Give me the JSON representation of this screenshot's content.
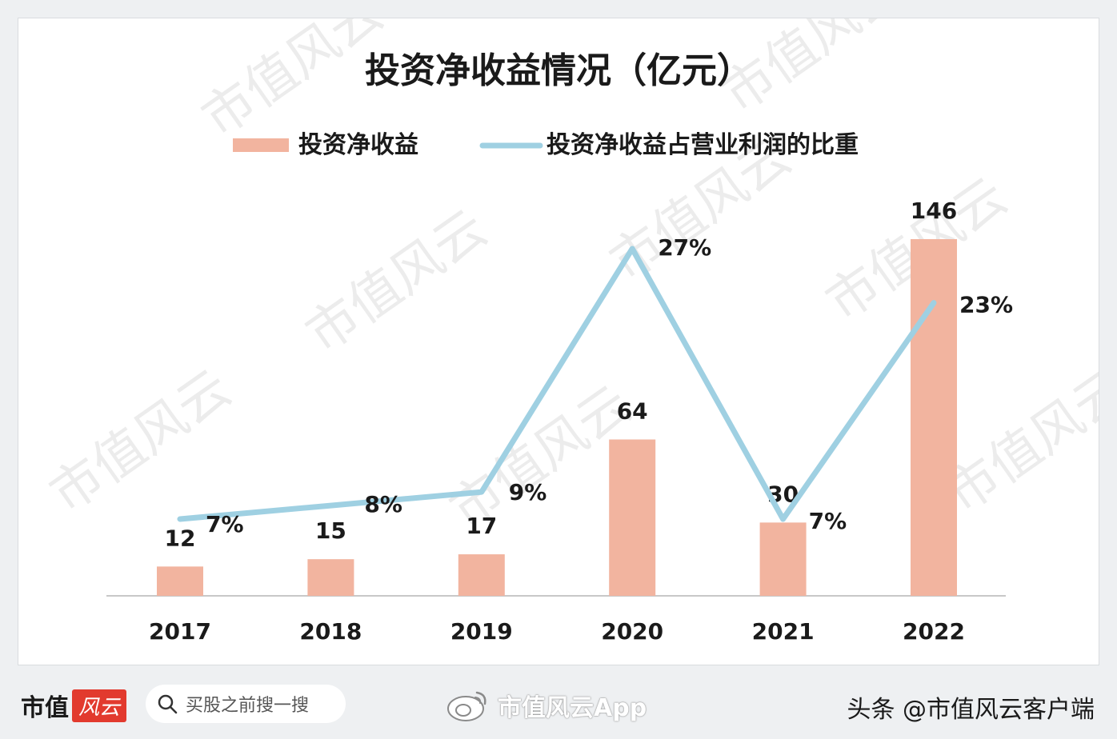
{
  "chart_data": {
    "type": "bar",
    "title": "投资净收益情况（亿元）",
    "categories": [
      "2017",
      "2018",
      "2019",
      "2020",
      "2021",
      "2022"
    ],
    "series": [
      {
        "name": "投资净收益",
        "kind": "bar",
        "color": "#f2b49f",
        "values": [
          12,
          15,
          17,
          64,
          30,
          146
        ]
      },
      {
        "name": "投资净收益占营业利润的比重",
        "kind": "line",
        "color": "#9fd0e2",
        "values": [
          7,
          8,
          9,
          27,
          7,
          23
        ],
        "unit": "%"
      }
    ],
    "bar_labels": [
      "12",
      "15",
      "17",
      "64",
      "30",
      "146"
    ],
    "line_labels": [
      "7%",
      "8%",
      "9%",
      "27%",
      "7%",
      "23%"
    ],
    "bar_ylim": [
      0,
      160
    ],
    "line_ylim": [
      0,
      30
    ],
    "legend_position": "top",
    "grid": false
  },
  "watermark": {
    "text": "市值风云"
  },
  "footer": {
    "brand_text": "市值",
    "brand_badge": "风云",
    "search_placeholder": "买股之前搜一搜",
    "weibo_text": "市值风云App",
    "toutiao_text": "头条 @市值风云客户端"
  }
}
